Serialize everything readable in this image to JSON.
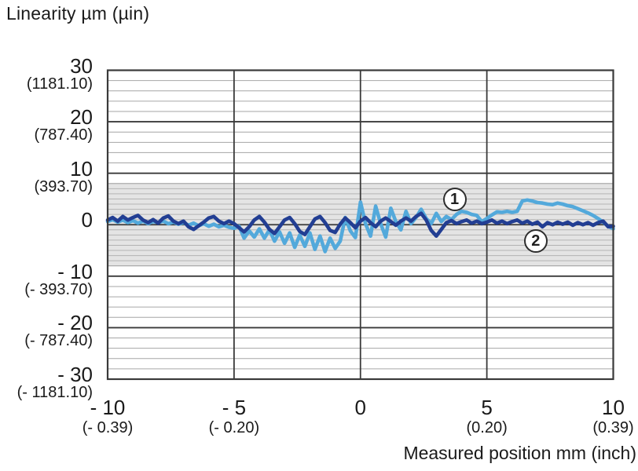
{
  "title": "Linearity µm (µin)",
  "x_axis_title": "Measured position mm (inch)",
  "colors": {
    "series1_light_blue": "#53A9DB",
    "series2_dark_blue": "#223E93",
    "band_fill": "#E4E4E4",
    "band_line": "#B3B3B3",
    "band_edge": "#9A9A9A",
    "grid_major": "#3A3A3A",
    "grid_minor": "#A6A6A6",
    "text": "#1A1A1A",
    "background": "#FFFFFF"
  },
  "chart_data": {
    "type": "line",
    "title": "Linearity µm (µin)",
    "xlabel": "Measured position mm (inch)",
    "ylabel": "Linearity µm (µin)",
    "xlim": [
      -10,
      10
    ],
    "ylim": [
      -30,
      30
    ],
    "grid": "on",
    "legend_position": "inline-circled-numbers",
    "x_ticks": [
      {
        "value": -10,
        "label": "- 10",
        "sub": "(- 0.39)"
      },
      {
        "value": -5,
        "label": "- 5",
        "sub": "(- 0.20)"
      },
      {
        "value": 0,
        "label": "0",
        "sub": ""
      },
      {
        "value": 5,
        "label": "5",
        "sub": "(0.20)"
      },
      {
        "value": 10,
        "label": "10",
        "sub": "(0.39)"
      }
    ],
    "y_ticks": [
      {
        "value": 30,
        "label": "30",
        "sub": "(1181.10)"
      },
      {
        "value": 20,
        "label": "20",
        "sub": "(787.40)"
      },
      {
        "value": 10,
        "label": "10",
        "sub": "(393.70)"
      },
      {
        "value": 0,
        "label": "0",
        "sub": ""
      },
      {
        "value": -10,
        "label": "- 10",
        "sub": "(- 393.70)"
      },
      {
        "value": -20,
        "label": "- 20",
        "sub": "(- 787.40)"
      },
      {
        "value": -30,
        "label": "- 30",
        "sub": "(- 1181.10)"
      }
    ],
    "minor_gridline_step_um": 2,
    "shaded_band": {
      "from_um": -8,
      "to_um": 8,
      "line_step_um": 1
    },
    "x_mm": [
      -10,
      -9.8,
      -9.6,
      -9.4,
      -9.2,
      -9,
      -8.8,
      -8.6,
      -8.4,
      -8.2,
      -8,
      -7.8,
      -7.6,
      -7.4,
      -7.2,
      -7,
      -6.8,
      -6.6,
      -6.4,
      -6.2,
      -6,
      -5.8,
      -5.6,
      -5.4,
      -5.2,
      -5,
      -4.8,
      -4.6,
      -4.4,
      -4.2,
      -4,
      -3.8,
      -3.6,
      -3.4,
      -3.2,
      -3,
      -2.8,
      -2.6,
      -2.4,
      -2.2,
      -2,
      -1.8,
      -1.6,
      -1.4,
      -1.2,
      -1,
      -0.8,
      -0.6,
      -0.4,
      -0.2,
      0,
      0.2,
      0.4,
      0.6,
      0.8,
      1,
      1.2,
      1.4,
      1.6,
      1.8,
      2,
      2.2,
      2.4,
      2.6,
      2.8,
      3,
      3.2,
      3.4,
      3.6,
      3.8,
      4,
      4.2,
      4.4,
      4.6,
      4.8,
      5,
      5.2,
      5.4,
      5.6,
      5.8,
      6,
      6.2,
      6.4,
      6.6,
      6.8,
      7,
      7.2,
      7.4,
      7.6,
      7.8,
      8,
      8.2,
      8.4,
      8.6,
      8.8,
      9,
      9.2,
      9.4,
      9.6,
      9.8,
      10
    ],
    "series": [
      {
        "name": "1",
        "color": "#53A9DB",
        "values": [
          0.6,
          1,
          0.5,
          0.9,
          0.4,
          0.8,
          0.3,
          0.7,
          0.2,
          0.6,
          0.4,
          0.7,
          0.2,
          0.5,
          0.1,
          0.4,
          -0.1,
          0.3,
          -0.2,
          0.2,
          -0.3,
          0.1,
          -0.4,
          -0.1,
          -0.5,
          -0.7,
          -0.3,
          -2.6,
          -1.2,
          -2.4,
          -0.8,
          -2.6,
          -1,
          -3.2,
          -1.4,
          -3.6,
          -1.6,
          -4.4,
          -2,
          -4.2,
          -1.6,
          -4.8,
          -2.2,
          -5.2,
          -2.6,
          -4.6,
          -3.2,
          1.4,
          -1.2,
          -2.5,
          4.4,
          0.2,
          -2.2,
          3.6,
          0.2,
          -2.4,
          3.2,
          0.6,
          -1,
          2.6,
          0.2,
          1.4,
          3,
          1.2,
          0.2,
          2.2,
          0.6,
          1.6,
          1,
          2,
          2.6,
          2.4,
          2,
          1.8,
          0.6,
          1.2,
          1.9,
          2.5,
          2.4,
          2.6,
          2.4,
          2.6,
          4.6,
          4.8,
          4.6,
          4.3,
          4.2,
          4,
          3.9,
          4.2,
          4,
          3.7,
          3.5,
          3.1,
          2.7,
          2.3,
          1.8,
          1.2,
          0.5,
          -0.3,
          -0.8
        ]
      },
      {
        "name": "2",
        "color": "#223E93",
        "values": [
          0.9,
          1.4,
          0.7,
          1.6,
          0.9,
          1.4,
          1.8,
          0.9,
          0.4,
          1,
          0.3,
          1.3,
          1.7,
          0.7,
          0.2,
          0.7,
          -0.4,
          -0.9,
          -0.2,
          0.5,
          1.3,
          1.6,
          0.7,
          0.2,
          0.7,
          0.2,
          -0.6,
          -1.4,
          -0.4,
          0.9,
          1.6,
          0.5,
          -0.9,
          -1.7,
          -0.4,
          0.9,
          1.4,
          0.2,
          -1.3,
          -1.9,
          -0.4,
          1.1,
          1.6,
          0.4,
          -1.1,
          -1.5,
          0.1,
          1.3,
          0.4,
          -0.6,
          0.7,
          1.4,
          0.4,
          -0.4,
          0.7,
          1.3,
          0.6,
          -0.1,
          0.7,
          1.3,
          0.7,
          1.6,
          2.2,
          0.9,
          -1.1,
          -2.2,
          -0.9,
          0.4,
          0.8,
          0.2,
          0.6,
          0.9,
          0.3,
          0.7,
          0.2,
          0.5,
          0.9,
          0.3,
          0.7,
          0.2,
          0.6,
          0.9,
          0.3,
          0.7,
          0.1,
          0.5,
          -0.4,
          0.4,
          0,
          0.5,
          0.1,
          0.5,
          -0.1,
          0.4,
          0,
          0.4,
          -0.1,
          0.4,
          0.7,
          -0.4,
          -0.3
        ]
      }
    ],
    "series_markers": [
      {
        "label": "1",
        "x_mm": 3.74,
        "y_um": 4.8
      },
      {
        "label": "2",
        "x_mm": 6.95,
        "y_um": -3.3
      }
    ]
  }
}
